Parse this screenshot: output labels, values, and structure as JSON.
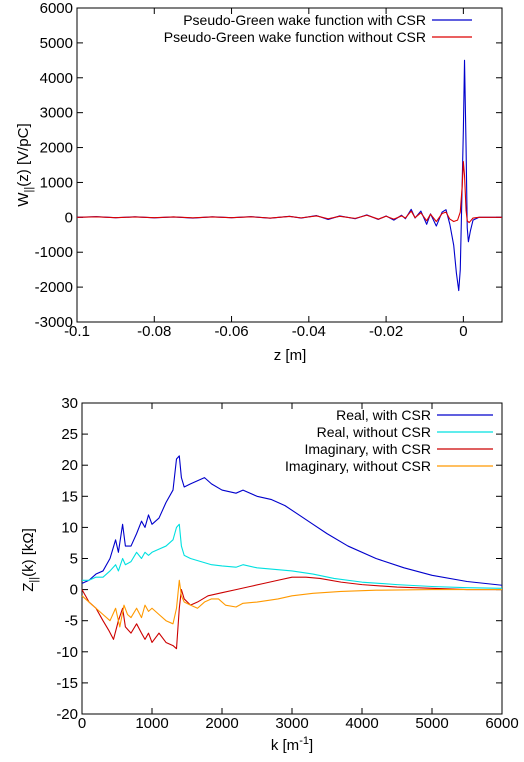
{
  "chart_data": [
    {
      "type": "line",
      "xlabel": "z [m]",
      "ylabel": "W||(z) [V/pC]",
      "xlim": [
        -0.1,
        0.01
      ],
      "ylim": [
        -3000,
        6000
      ],
      "xticks": [
        "-0.1",
        "-0.08",
        "-0.06",
        "-0.04",
        "-0.02",
        "0"
      ],
      "xtick_values": [
        -0.1,
        -0.08,
        -0.06,
        -0.04,
        -0.02,
        0
      ],
      "yticks": [
        "6000",
        "5000",
        "4000",
        "3000",
        "2000",
        "1000",
        "0",
        "-1000",
        "-2000",
        "-3000"
      ],
      "ytick_values": [
        6000,
        5000,
        4000,
        3000,
        2000,
        1000,
        0,
        -1000,
        -2000,
        -3000
      ],
      "legend_position": "top-right",
      "series": [
        {
          "name": "Pseudo-Green wake function with CSR",
          "color": "#0000cc",
          "points": [
            [
              -0.1,
              0
            ],
            [
              -0.095,
              20
            ],
            [
              -0.09,
              -10
            ],
            [
              -0.085,
              15
            ],
            [
              -0.08,
              -15
            ],
            [
              -0.075,
              10
            ],
            [
              -0.07,
              -20
            ],
            [
              -0.065,
              15
            ],
            [
              -0.06,
              -10
            ],
            [
              -0.055,
              20
            ],
            [
              -0.05,
              -25
            ],
            [
              -0.045,
              30
            ],
            [
              -0.042,
              -20
            ],
            [
              -0.038,
              50
            ],
            [
              -0.035,
              -60
            ],
            [
              -0.032,
              40
            ],
            [
              -0.028,
              -40
            ],
            [
              -0.025,
              70
            ],
            [
              -0.022,
              -60
            ],
            [
              -0.02,
              40
            ],
            [
              -0.018,
              -80
            ],
            [
              -0.016,
              60
            ],
            [
              -0.015,
              -40
            ],
            [
              -0.0135,
              230
            ],
            [
              -0.0125,
              -20
            ],
            [
              -0.011,
              180
            ],
            [
              -0.0095,
              -200
            ],
            [
              -0.0085,
              100
            ],
            [
              -0.007,
              -250
            ],
            [
              -0.0055,
              150
            ],
            [
              -0.0045,
              220
            ],
            [
              -0.0035,
              -200
            ],
            [
              -0.0025,
              -800
            ],
            [
              -0.0018,
              -1600
            ],
            [
              -0.0012,
              -2100
            ],
            [
              -0.0008,
              -1500
            ],
            [
              -0.0004,
              500
            ],
            [
              0,
              2500
            ],
            [
              0.0003,
              4500
            ],
            [
              0.0007,
              2000
            ],
            [
              0.001,
              -300
            ],
            [
              0.0013,
              -700
            ],
            [
              0.0018,
              -400
            ],
            [
              0.0025,
              -80
            ],
            [
              0.004,
              0
            ],
            [
              0.01,
              0
            ]
          ]
        },
        {
          "name": "Pseudo-Green wake function without CSR",
          "color": "#dd0000",
          "points": [
            [
              -0.1,
              0
            ],
            [
              -0.095,
              15
            ],
            [
              -0.09,
              -10
            ],
            [
              -0.085,
              10
            ],
            [
              -0.08,
              -10
            ],
            [
              -0.075,
              10
            ],
            [
              -0.07,
              -15
            ],
            [
              -0.065,
              10
            ],
            [
              -0.06,
              -10
            ],
            [
              -0.055,
              15
            ],
            [
              -0.05,
              -20
            ],
            [
              -0.045,
              25
            ],
            [
              -0.042,
              -15
            ],
            [
              -0.038,
              40
            ],
            [
              -0.035,
              -40
            ],
            [
              -0.032,
              30
            ],
            [
              -0.028,
              -30
            ],
            [
              -0.025,
              60
            ],
            [
              -0.022,
              -50
            ],
            [
              -0.02,
              30
            ],
            [
              -0.018,
              -50
            ],
            [
              -0.016,
              40
            ],
            [
              -0.015,
              -20
            ],
            [
              -0.0135,
              180
            ],
            [
              -0.0125,
              -10
            ],
            [
              -0.011,
              130
            ],
            [
              -0.0095,
              -100
            ],
            [
              -0.0085,
              90
            ],
            [
              -0.007,
              -120
            ],
            [
              -0.0055,
              110
            ],
            [
              -0.0045,
              150
            ],
            [
              -0.0035,
              -50
            ],
            [
              -0.0025,
              -120
            ],
            [
              -0.0015,
              -80
            ],
            [
              -0.0008,
              150
            ],
            [
              -0.0003,
              900
            ],
            [
              0,
              1600
            ],
            [
              0.0003,
              1200
            ],
            [
              0.0007,
              200
            ],
            [
              0.001,
              -100
            ],
            [
              0.0015,
              -150
            ],
            [
              0.0025,
              -20
            ],
            [
              0.004,
              0
            ],
            [
              0.01,
              0
            ]
          ]
        }
      ]
    },
    {
      "type": "line",
      "xlabel": "k [m-1]",
      "ylabel": "Z||(k) [kΩ]",
      "xlim": [
        0,
        6000
      ],
      "ylim": [
        -20,
        30
      ],
      "xticks": [
        "0",
        "1000",
        "2000",
        "3000",
        "4000",
        "5000",
        "6000"
      ],
      "xtick_values": [
        0,
        1000,
        2000,
        3000,
        4000,
        5000,
        6000
      ],
      "yticks": [
        "30",
        "25",
        "20",
        "15",
        "10",
        "5",
        "0",
        "-5",
        "-10",
        "-15",
        "-20"
      ],
      "ytick_values": [
        30,
        25,
        20,
        15,
        10,
        5,
        0,
        -5,
        -10,
        -15,
        -20
      ],
      "legend_position": "top-right",
      "series": [
        {
          "name": "Real, with CSR",
          "color": "#0000cc",
          "points": [
            [
              0,
              1
            ],
            [
              100,
              1.5
            ],
            [
              200,
              2.5
            ],
            [
              300,
              3
            ],
            [
              400,
              5
            ],
            [
              480,
              8
            ],
            [
              520,
              6
            ],
            [
              580,
              10.5
            ],
            [
              620,
              7
            ],
            [
              700,
              7
            ],
            [
              780,
              9
            ],
            [
              850,
              11
            ],
            [
              900,
              10
            ],
            [
              950,
              12
            ],
            [
              1000,
              10.5
            ],
            [
              1100,
              11.5
            ],
            [
              1200,
              14
            ],
            [
              1300,
              16
            ],
            [
              1350,
              21
            ],
            [
              1390,
              21.5
            ],
            [
              1420,
              18
            ],
            [
              1460,
              16.5
            ],
            [
              1550,
              17
            ],
            [
              1650,
              17.5
            ],
            [
              1750,
              18
            ],
            [
              1850,
              17
            ],
            [
              2000,
              16
            ],
            [
              2200,
              15.5
            ],
            [
              2300,
              16
            ],
            [
              2500,
              15
            ],
            [
              2700,
              14.5
            ],
            [
              2900,
              13.5
            ],
            [
              3100,
              12
            ],
            [
              3300,
              10.5
            ],
            [
              3500,
              9
            ],
            [
              3800,
              7
            ],
            [
              4200,
              5
            ],
            [
              4600,
              3.5
            ],
            [
              5000,
              2.3
            ],
            [
              5500,
              1.3
            ],
            [
              6000,
              0.7
            ]
          ]
        },
        {
          "name": "Real, without CSR",
          "color": "#00e0e0",
          "points": [
            [
              0,
              1.5
            ],
            [
              100,
              1.5
            ],
            [
              200,
              2
            ],
            [
              300,
              2
            ],
            [
              400,
              3
            ],
            [
              480,
              4
            ],
            [
              520,
              3
            ],
            [
              580,
              5
            ],
            [
              620,
              4
            ],
            [
              700,
              4.5
            ],
            [
              780,
              6
            ],
            [
              850,
              5
            ],
            [
              900,
              6
            ],
            [
              950,
              5.5
            ],
            [
              1000,
              6
            ],
            [
              1100,
              6.5
            ],
            [
              1200,
              7
            ],
            [
              1300,
              8
            ],
            [
              1350,
              10
            ],
            [
              1390,
              10.5
            ],
            [
              1420,
              7
            ],
            [
              1460,
              5.5
            ],
            [
              1550,
              5
            ],
            [
              1700,
              4.5
            ],
            [
              1850,
              4
            ],
            [
              2000,
              3.8
            ],
            [
              2200,
              3.6
            ],
            [
              2300,
              4
            ],
            [
              2500,
              3.5
            ],
            [
              2800,
              3.2
            ],
            [
              3000,
              3
            ],
            [
              3300,
              2.5
            ],
            [
              3600,
              1.8
            ],
            [
              4000,
              1.2
            ],
            [
              4500,
              0.8
            ],
            [
              5000,
              0.5
            ],
            [
              5500,
              0.3
            ],
            [
              6000,
              0.2
            ]
          ]
        },
        {
          "name": "Imaginary, with CSR",
          "color": "#cc0000",
          "points": [
            [
              0,
              0
            ],
            [
              100,
              -2
            ],
            [
              200,
              -3
            ],
            [
              300,
              -5
            ],
            [
              380,
              -6.5
            ],
            [
              450,
              -8
            ],
            [
              520,
              -5
            ],
            [
              580,
              -3
            ],
            [
              620,
              -6
            ],
            [
              700,
              -7
            ],
            [
              780,
              -5.5
            ],
            [
              850,
              -7
            ],
            [
              900,
              -8
            ],
            [
              950,
              -7
            ],
            [
              1000,
              -8.5
            ],
            [
              1100,
              -7
            ],
            [
              1200,
              -8.5
            ],
            [
              1300,
              -9
            ],
            [
              1350,
              -9.5
            ],
            [
              1390,
              -3
            ],
            [
              1420,
              0
            ],
            [
              1460,
              -1.5
            ],
            [
              1550,
              -2.5
            ],
            [
              1650,
              -2
            ],
            [
              1800,
              -1
            ],
            [
              2000,
              -0.5
            ],
            [
              2200,
              0
            ],
            [
              2400,
              0.5
            ],
            [
              2600,
              1
            ],
            [
              2800,
              1.5
            ],
            [
              3000,
              2
            ],
            [
              3200,
              2
            ],
            [
              3400,
              1.8
            ],
            [
              3700,
              1.2
            ],
            [
              4000,
              0.8
            ],
            [
              4500,
              0.4
            ],
            [
              5000,
              0.2
            ],
            [
              5500,
              0
            ],
            [
              6000,
              0
            ]
          ]
        },
        {
          "name": "Imaginary, without CSR",
          "color": "#ff9900",
          "points": [
            [
              0,
              -1
            ],
            [
              100,
              -2
            ],
            [
              200,
              -3
            ],
            [
              300,
              -4
            ],
            [
              400,
              -5
            ],
            [
              480,
              -3
            ],
            [
              540,
              -6
            ],
            [
              600,
              -2.5
            ],
            [
              650,
              -4
            ],
            [
              700,
              -4.5
            ],
            [
              780,
              -3
            ],
            [
              850,
              -4.5
            ],
            [
              900,
              -2.5
            ],
            [
              950,
              -3.5
            ],
            [
              1000,
              -3
            ],
            [
              1100,
              -4
            ],
            [
              1200,
              -5
            ],
            [
              1300,
              -5.5
            ],
            [
              1350,
              -3
            ],
            [
              1390,
              1.5
            ],
            [
              1420,
              -1
            ],
            [
              1460,
              -2
            ],
            [
              1550,
              -2.5
            ],
            [
              1650,
              -3
            ],
            [
              1750,
              -2
            ],
            [
              1850,
              -1.5
            ],
            [
              1950,
              -1.5
            ],
            [
              2050,
              -2.5
            ],
            [
              2200,
              -2.8
            ],
            [
              2300,
              -2.2
            ],
            [
              2500,
              -2
            ],
            [
              2800,
              -1.5
            ],
            [
              3000,
              -1
            ],
            [
              3300,
              -0.6
            ],
            [
              3700,
              -0.3
            ],
            [
              4200,
              -0.1
            ],
            [
              5000,
              0
            ],
            [
              6000,
              0
            ]
          ]
        }
      ]
    }
  ]
}
